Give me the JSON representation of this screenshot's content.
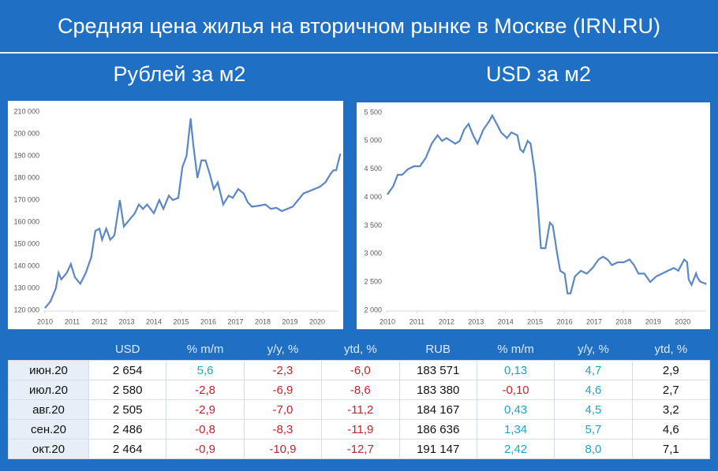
{
  "title": "Средняя цена жилья на вторичном рынке в Москве (IRN.RU)",
  "chart_data": [
    {
      "type": "line",
      "title": "Рублей за м2",
      "color": "#5b87c5",
      "grid": false,
      "x": [
        2010.0,
        2010.2,
        2010.4,
        2010.5,
        2010.6,
        2010.8,
        2010.95,
        2011.1,
        2011.3,
        2011.5,
        2011.7,
        2011.85,
        2012.0,
        2012.1,
        2012.25,
        2012.4,
        2012.55,
        2012.75,
        2012.9,
        2013.1,
        2013.3,
        2013.45,
        2013.6,
        2013.75,
        2014.0,
        2014.2,
        2014.35,
        2014.55,
        2014.7,
        2014.9,
        2015.05,
        2015.2,
        2015.35,
        2015.45,
        2015.6,
        2015.75,
        2015.9,
        2016.05,
        2016.2,
        2016.35,
        2016.55,
        2016.75,
        2016.9,
        2017.1,
        2017.3,
        2017.45,
        2017.6,
        2017.9,
        2018.1,
        2018.3,
        2018.5,
        2018.7,
        2018.9,
        2019.1,
        2019.3,
        2019.5,
        2019.7,
        2019.9,
        2020.1,
        2020.3,
        2020.5,
        2020.6,
        2020.7,
        2020.75,
        2020.85
      ],
      "values": [
        121000,
        124000,
        130000,
        137000,
        134000,
        137000,
        141000,
        135000,
        132000,
        137000,
        144000,
        156000,
        157000,
        152000,
        157000,
        152000,
        154000,
        170000,
        158000,
        161000,
        164000,
        168000,
        166000,
        168000,
        164000,
        170000,
        166000,
        172000,
        170000,
        171000,
        185000,
        190000,
        207000,
        195000,
        180000,
        188000,
        188000,
        182000,
        175000,
        178000,
        168000,
        172000,
        171000,
        175000,
        173000,
        169000,
        167000,
        167500,
        168000,
        166000,
        166500,
        165000,
        166000,
        167000,
        170000,
        173000,
        174000,
        175000,
        176000,
        178000,
        182000,
        183500,
        183500,
        186000,
        191000
      ],
      "xlim": [
        2010,
        2020.9
      ],
      "xticks": [
        2010,
        2011,
        2012,
        2013,
        2014,
        2015,
        2016,
        2017,
        2018,
        2019,
        2020
      ],
      "ylim": [
        120000,
        210000
      ],
      "yticks": [
        {
          "value": 120000,
          "label": "120 000"
        },
        {
          "value": 130000,
          "label": "130 000"
        },
        {
          "value": 140000,
          "label": "140 000"
        },
        {
          "value": 150000,
          "label": "150 000"
        },
        {
          "value": 160000,
          "label": "160 000"
        },
        {
          "value": 170000,
          "label": "170 000"
        },
        {
          "value": 180000,
          "label": "180 000"
        },
        {
          "value": 190000,
          "label": "190 000"
        },
        {
          "value": 200000,
          "label": "200 000"
        },
        {
          "value": 210000,
          "label": "210 000"
        }
      ]
    },
    {
      "type": "line",
      "title": "USD за м2",
      "color": "#5b87c5",
      "grid": false,
      "x": [
        2010.0,
        2010.2,
        2010.35,
        2010.5,
        2010.7,
        2010.9,
        2011.1,
        2011.3,
        2011.5,
        2011.7,
        2011.85,
        2012.0,
        2012.15,
        2012.3,
        2012.45,
        2012.6,
        2012.75,
        2012.9,
        2013.05,
        2013.25,
        2013.45,
        2013.55,
        2013.7,
        2013.85,
        2014.05,
        2014.2,
        2014.4,
        2014.5,
        2014.6,
        2014.75,
        2014.85,
        2015.0,
        2015.1,
        2015.2,
        2015.35,
        2015.5,
        2015.6,
        2015.75,
        2015.85,
        2016.0,
        2016.1,
        2016.2,
        2016.35,
        2016.55,
        2016.75,
        2016.95,
        2017.15,
        2017.3,
        2017.45,
        2017.6,
        2017.8,
        2018.0,
        2018.2,
        2018.35,
        2018.5,
        2018.7,
        2018.9,
        2019.1,
        2019.3,
        2019.5,
        2019.7,
        2019.85,
        2020.0,
        2020.05,
        2020.15,
        2020.2,
        2020.3,
        2020.45,
        2020.5,
        2020.6,
        2020.7,
        2020.8
      ],
      "values": [
        4050,
        4200,
        4400,
        4400,
        4500,
        4550,
        4550,
        4700,
        4950,
        5100,
        5000,
        5050,
        5000,
        4950,
        5000,
        5200,
        5300,
        5100,
        4950,
        5200,
        5350,
        5450,
        5300,
        5150,
        5050,
        5150,
        5100,
        4850,
        4800,
        5000,
        4950,
        4400,
        3800,
        3100,
        3100,
        3550,
        3500,
        3000,
        2700,
        2650,
        2300,
        2300,
        2600,
        2700,
        2650,
        2750,
        2900,
        2950,
        2900,
        2800,
        2850,
        2850,
        2900,
        2800,
        2650,
        2650,
        2500,
        2600,
        2650,
        2700,
        2750,
        2700,
        2850,
        2900,
        2850,
        2550,
        2450,
        2654,
        2580,
        2505,
        2486,
        2464
      ],
      "xlim": [
        2010,
        2020.9
      ],
      "xticks": [
        2010,
        2011,
        2012,
        2013,
        2014,
        2015,
        2016,
        2017,
        2018,
        2019,
        2020
      ],
      "ylim": [
        2000,
        5500
      ],
      "yticks": [
        {
          "value": 2000,
          "label": "2 000"
        },
        {
          "value": 2500,
          "label": "2 500"
        },
        {
          "value": 3000,
          "label": "3 000"
        },
        {
          "value": 3500,
          "label": "3 500"
        },
        {
          "value": 4000,
          "label": "4 000"
        },
        {
          "value": 4500,
          "label": "4 500"
        },
        {
          "value": 5000,
          "label": "5 000"
        },
        {
          "value": 5500,
          "label": "5 500"
        }
      ]
    }
  ],
  "table": {
    "headers": [
      "USD",
      "% m/m",
      "y/y, %",
      "ytd, %",
      "RUB",
      "% m/m",
      "y/y, %",
      "ytd, %"
    ],
    "positive_color": "#1aa6c8",
    "negative_color": "#c0262d",
    "colored_columns": [
      2,
      3,
      4,
      6,
      7
    ],
    "rows": [
      [
        "июн.20",
        "2 654",
        "5,6",
        "-2,3",
        "-6,0",
        "183 571",
        "0,13",
        "4,7",
        "2,9"
      ],
      [
        "июл.20",
        "2 580",
        "-2,8",
        "-6,9",
        "-8,6",
        "183 380",
        "-0,10",
        "4,6",
        "2,7"
      ],
      [
        "авг.20",
        "2 505",
        "-2,9",
        "-7,0",
        "-11,2",
        "184 167",
        "0,43",
        "4,5",
        "3,2"
      ],
      [
        "сен.20",
        "2 486",
        "-0,8",
        "-8,3",
        "-11,9",
        "186 636",
        "1,34",
        "5,7",
        "4,6"
      ],
      [
        "окт.20",
        "2 464",
        "-0,9",
        "-10,9",
        "-12,7",
        "191 147",
        "2,42",
        "8,0",
        "7,1"
      ]
    ]
  }
}
